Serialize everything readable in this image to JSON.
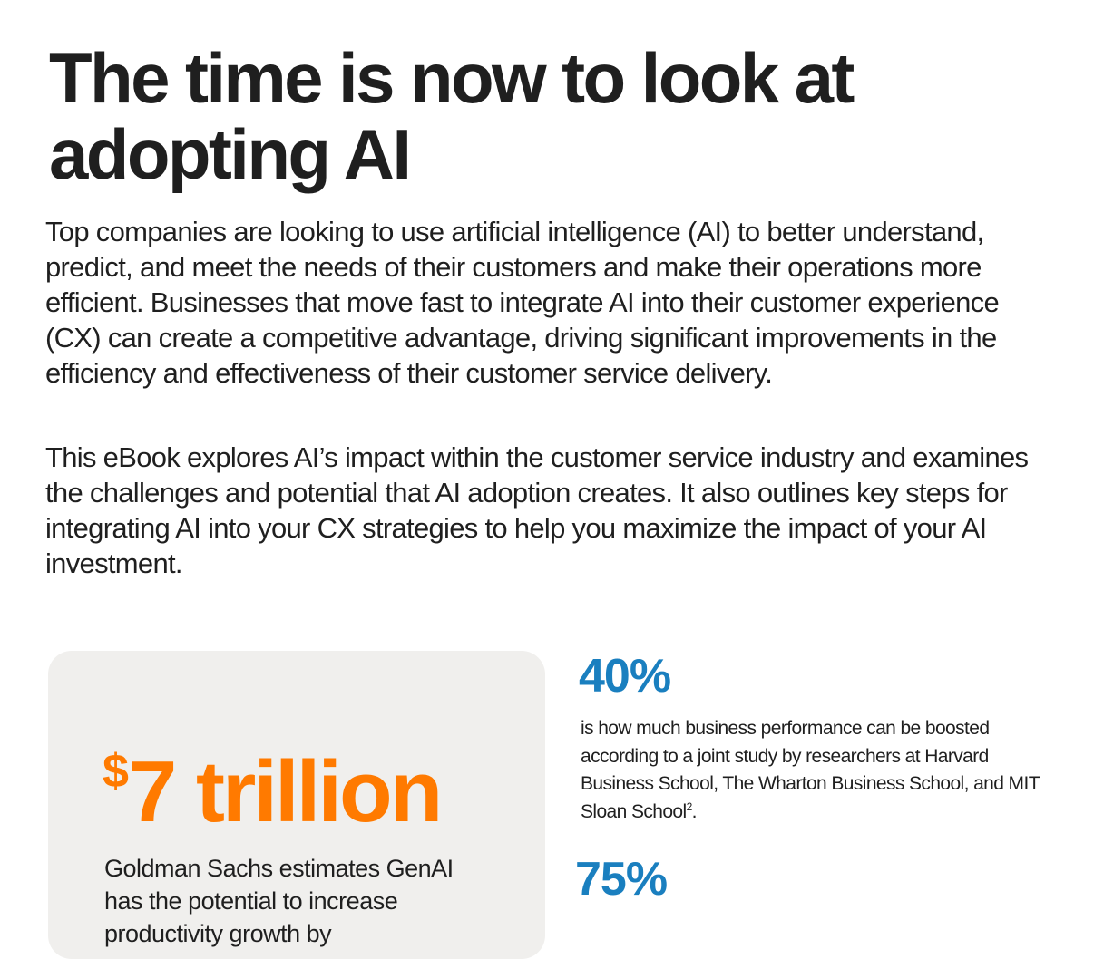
{
  "heading": {
    "title": "The time is now to look at adopting AI"
  },
  "intro": {
    "paragraph_1": "Top companies are looking to use artificial intelligence (AI) to better understand, predict, and meet the needs of their customers and make their operations more efficient. Businesses that move fast to integrate AI into their customer experience (CX) can create a competitive advantage, driving significant improvements in the efficiency and effectiveness of their customer service delivery.",
    "paragraph_2": "This eBook explores AI’s impact within the customer service industry and examines the challenges and potential that AI adoption creates. It also outlines key steps for integrating AI into your CX strategies to help you maximize the impact of your AI investment."
  },
  "stat_card": {
    "currency_symbol": "$",
    "value": "7 trillion",
    "text": "Goldman Sachs estimates GenAI has the potential to increase productivity growth by",
    "accent_color": "#ff7a00",
    "background_color": "#f0efed"
  },
  "stats": [
    {
      "value": "40%",
      "text": "is how much business performance can be boosted according to a joint study by researchers at Harvard Business School, The Wharton Business School, and MIT Sloan School",
      "footnote": "2",
      "trailing": "."
    },
    {
      "value": "75%"
    }
  ],
  "colors": {
    "stat_blue": "#1a7fbf",
    "text_dark": "#1f1f1f"
  }
}
